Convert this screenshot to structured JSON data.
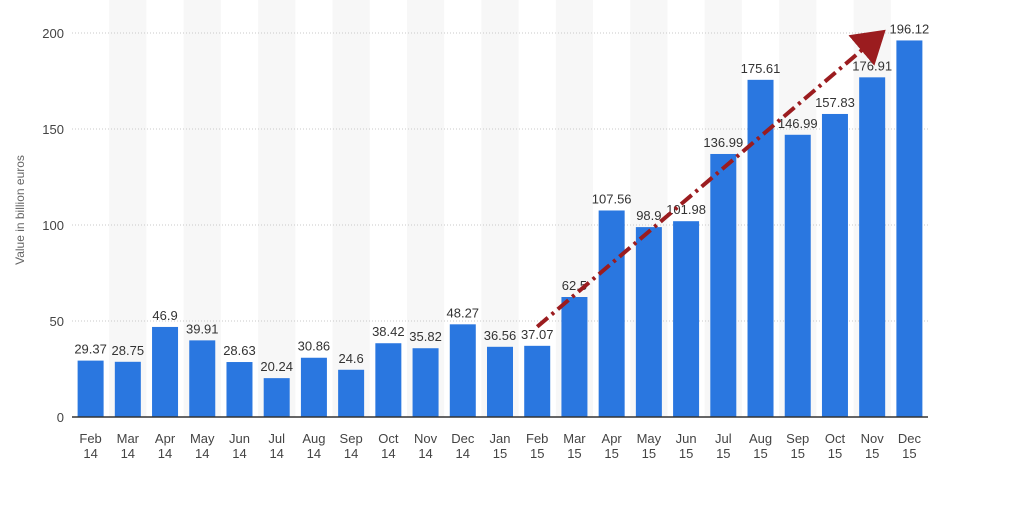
{
  "chart_data": {
    "type": "bar",
    "title": "",
    "xlabel": "",
    "ylabel": "Value in billion euros",
    "ylim": [
      0,
      200
    ],
    "yticks": [
      0,
      50,
      100,
      150,
      200
    ],
    "grid": true,
    "legend": "none",
    "categories": [
      [
        "Feb",
        "14"
      ],
      [
        "Mar",
        "14"
      ],
      [
        "Apr",
        "14"
      ],
      [
        "May",
        "14"
      ],
      [
        "Jun",
        "14"
      ],
      [
        "Jul",
        "14"
      ],
      [
        "Aug",
        "14"
      ],
      [
        "Sep",
        "14"
      ],
      [
        "Oct",
        "14"
      ],
      [
        "Nov",
        "14"
      ],
      [
        "Dec",
        "14"
      ],
      [
        "Jan",
        "15"
      ],
      [
        "Feb",
        "15"
      ],
      [
        "Mar",
        "15"
      ],
      [
        "Apr",
        "15"
      ],
      [
        "May",
        "15"
      ],
      [
        "Jun",
        "15"
      ],
      [
        "Jul",
        "15"
      ],
      [
        "Aug",
        "15"
      ],
      [
        "Sep",
        "15"
      ],
      [
        "Oct",
        "15"
      ],
      [
        "Nov",
        "15"
      ],
      [
        "Dec",
        "15"
      ]
    ],
    "values": [
      29.37,
      28.75,
      46.9,
      39.91,
      28.63,
      20.24,
      30.86,
      24.6,
      38.42,
      35.82,
      48.27,
      36.56,
      37.07,
      62.5,
      107.56,
      98.9,
      101.98,
      136.99,
      175.61,
      146.99,
      157.83,
      176.91,
      196.12
    ],
    "data_labels": [
      "29.37",
      "28.75",
      "46.9",
      "39.91",
      "28.63",
      "20.24",
      "30.86",
      "24.6",
      "38.42",
      "35.82",
      "48.27",
      "36.56",
      "37.07",
      "62.5",
      "107.56",
      "98.9",
      "101.98",
      "136.99",
      "175.61",
      "146.99",
      "157.83",
      "176.91",
      "196.12"
    ],
    "bar_color": "#2a77e0",
    "annotations": [
      {
        "type": "trend-arrow",
        "from": {
          "category_index": 12,
          "value": 47
        },
        "to": {
          "category_index": 21.2,
          "value": 199
        },
        "color": "#9b1c1f"
      }
    ]
  }
}
